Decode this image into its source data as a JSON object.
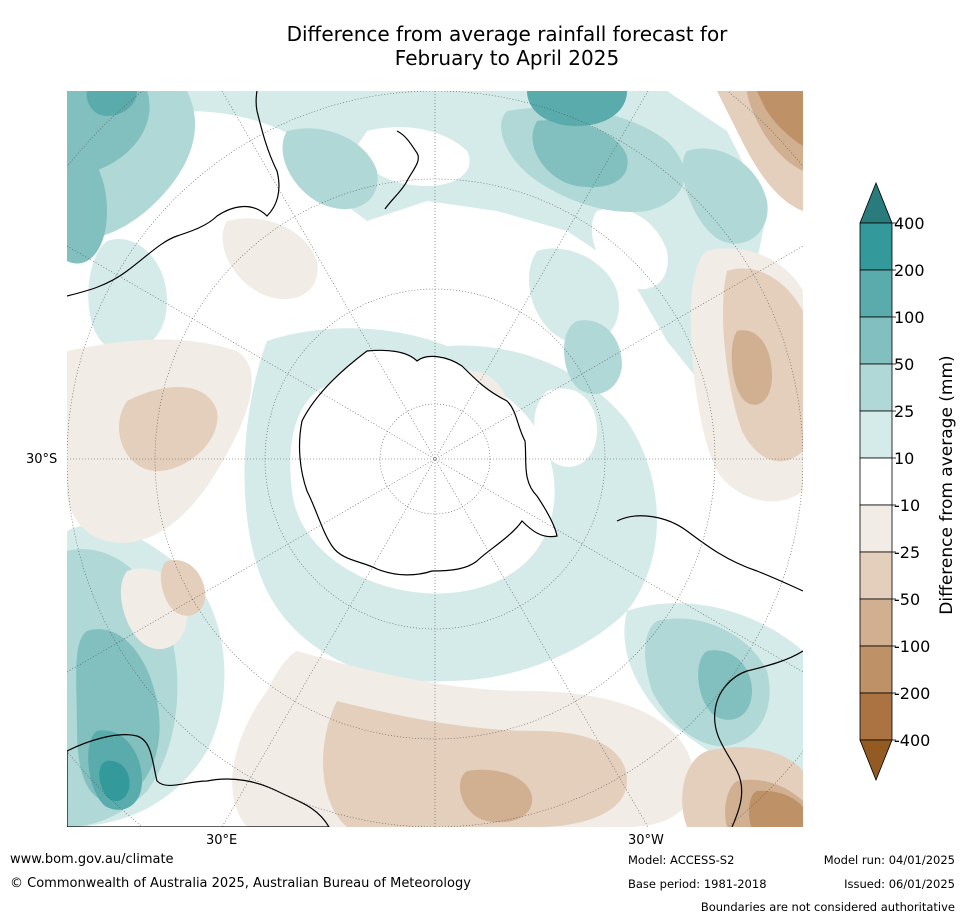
{
  "title_line1": "Difference from average rainfall forecast for",
  "title_line2": "February to April 2025",
  "map": {
    "projection": "south polar stereographic",
    "lat_label": "30°S",
    "lon_label_left": "30°E",
    "lon_label_right": "30°W"
  },
  "colorbar": {
    "label": "Difference from average (mm)",
    "ticks": [
      "400",
      "200",
      "100",
      "50",
      "25",
      "10",
      "-10",
      "-25",
      "-50",
      "-100",
      "-200",
      "-400"
    ],
    "colors": [
      "#2a7b7b",
      "#34999a",
      "#5aabab",
      "#82c0bf",
      "#afd8d6",
      "#d5ebe9",
      "#ffffff",
      "#f2ece6",
      "#e4cfbd",
      "#d1b092",
      "#bf9166",
      "#aa7341",
      "#935b22"
    ]
  },
  "footer": {
    "url": "www.bom.gov.au/climate",
    "copyright": "© Commonwealth of Australia 2025, Australian Bureau of Meteorology",
    "model": "Model: ACCESS-S2",
    "base_period": "Base period: 1981-2018",
    "model_run": "Model run: 04/01/2025",
    "issued": "Issued: 06/01/2025",
    "disclaimer": "Boundaries are not considered authoritative"
  }
}
